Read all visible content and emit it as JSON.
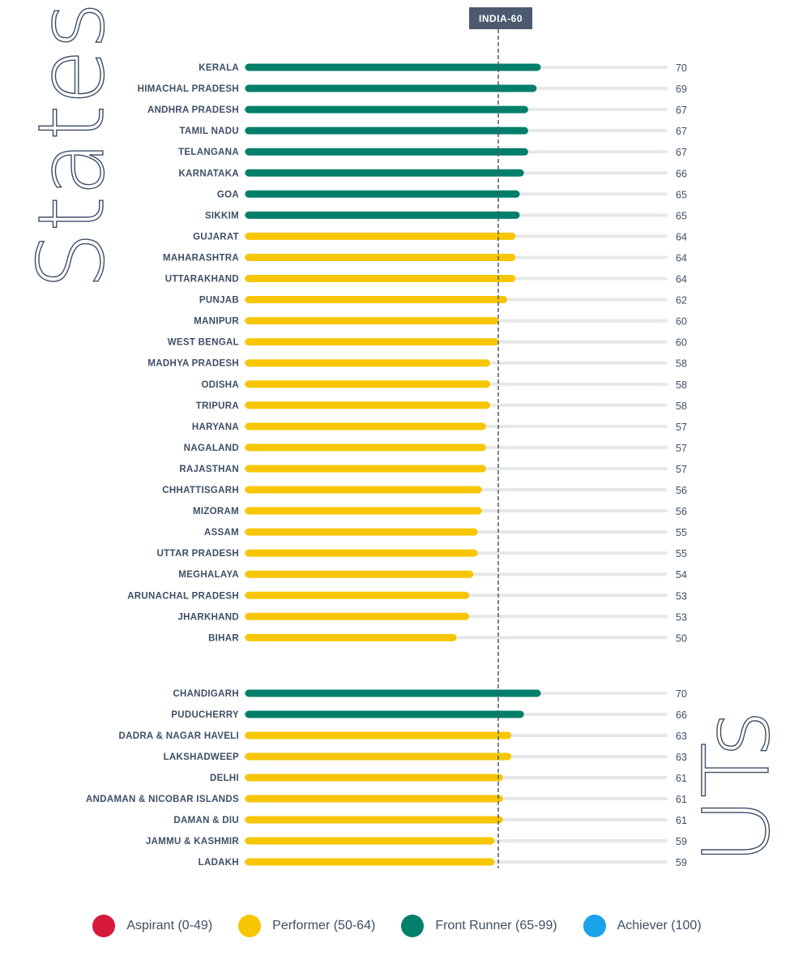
{
  "chart_data": {
    "type": "bar",
    "orientation": "horizontal",
    "xlim": [
      0,
      100
    ],
    "reference": {
      "label": "INDIA-60",
      "value": 60
    },
    "section_titles": {
      "states": "States",
      "uts": "UTs"
    },
    "colors": {
      "track": "#e6e7e9",
      "reference_line": "#4b5a6e",
      "reference_box": "#4b5a6e",
      "text": "#3d4f66"
    },
    "categories_legend": [
      {
        "name": "Aspirant (0-49)",
        "color": "#d71a3c"
      },
      {
        "name": "Performer (50-64)",
        "color": "#f7c600"
      },
      {
        "name": "Front Runner (65-99)",
        "color": "#007f6a"
      },
      {
        "name": "Achiever (100)",
        "color": "#1aa3e8"
      }
    ],
    "states": [
      {
        "label": "KERALA",
        "value": 70,
        "category": "Front Runner"
      },
      {
        "label": "HIMACHAL PRADESH",
        "value": 69,
        "category": "Front Runner"
      },
      {
        "label": "ANDHRA PRADESH",
        "value": 67,
        "category": "Front Runner"
      },
      {
        "label": "TAMIL NADU",
        "value": 67,
        "category": "Front Runner"
      },
      {
        "label": "TELANGANA",
        "value": 67,
        "category": "Front Runner"
      },
      {
        "label": "KARNATAKA",
        "value": 66,
        "category": "Front Runner"
      },
      {
        "label": "GOA",
        "value": 65,
        "category": "Front Runner"
      },
      {
        "label": "SIKKIM",
        "value": 65,
        "category": "Front Runner"
      },
      {
        "label": "GUJARAT",
        "value": 64,
        "category": "Performer"
      },
      {
        "label": "MAHARASHTRA",
        "value": 64,
        "category": "Performer"
      },
      {
        "label": "UTTARAKHAND",
        "value": 64,
        "category": "Performer"
      },
      {
        "label": "PUNJAB",
        "value": 62,
        "category": "Performer"
      },
      {
        "label": "MANIPUR",
        "value": 60,
        "category": "Performer"
      },
      {
        "label": "WEST BENGAL",
        "value": 60,
        "category": "Performer"
      },
      {
        "label": "MADHYA PRADESH",
        "value": 58,
        "category": "Performer"
      },
      {
        "label": "ODISHA",
        "value": 58,
        "category": "Performer"
      },
      {
        "label": "TRIPURA",
        "value": 58,
        "category": "Performer"
      },
      {
        "label": "HARYANA",
        "value": 57,
        "category": "Performer"
      },
      {
        "label": "NAGALAND",
        "value": 57,
        "category": "Performer"
      },
      {
        "label": "RAJASTHAN",
        "value": 57,
        "category": "Performer"
      },
      {
        "label": "CHHATTISGARH",
        "value": 56,
        "category": "Performer"
      },
      {
        "label": "MIZORAM",
        "value": 56,
        "category": "Performer"
      },
      {
        "label": "ASSAM",
        "value": 55,
        "category": "Performer"
      },
      {
        "label": "UTTAR PRADESH",
        "value": 55,
        "category": "Performer"
      },
      {
        "label": "MEGHALAYA",
        "value": 54,
        "category": "Performer"
      },
      {
        "label": "ARUNACHAL PRADESH",
        "value": 53,
        "category": "Performer"
      },
      {
        "label": "JHARKHAND",
        "value": 53,
        "category": "Performer"
      },
      {
        "label": "BIHAR",
        "value": 50,
        "category": "Performer"
      }
    ],
    "uts": [
      {
        "label": "CHANDIGARH",
        "value": 70,
        "category": "Front Runner"
      },
      {
        "label": "PUDUCHERRY",
        "value": 66,
        "category": "Front Runner"
      },
      {
        "label": "DADRA & NAGAR HAVELI",
        "value": 63,
        "category": "Performer"
      },
      {
        "label": "LAKSHADWEEP",
        "value": 63,
        "category": "Performer"
      },
      {
        "label": "DELHI",
        "value": 61,
        "category": "Performer"
      },
      {
        "label": "ANDAMAN & NICOBAR ISLANDS",
        "value": 61,
        "category": "Performer"
      },
      {
        "label": "DAMAN & DIU",
        "value": 61,
        "category": "Performer"
      },
      {
        "label": "JAMMU & KASHMIR",
        "value": 59,
        "category": "Performer"
      },
      {
        "label": "LADAKH",
        "value": 59,
        "category": "Performer"
      }
    ]
  }
}
